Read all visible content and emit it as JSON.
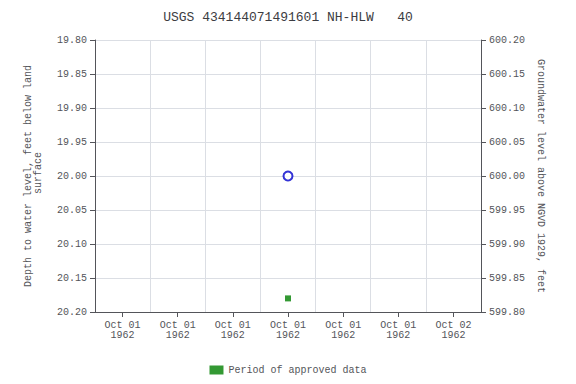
{
  "chart_data": {
    "type": "scatter",
    "title": "USGS 434144071491601 NH-HLW   40",
    "ylabel": "Depth to water level, feet below land\n surface",
    "y2label": "Groundwater level above NGVD 1929, feet",
    "categories": [
      "Oct 01\n1962",
      "Oct 01\n1962",
      "Oct 01\n1962",
      "Oct 01\n1962",
      "Oct 01\n1962",
      "Oct 01\n1962",
      "Oct 02\n1962"
    ],
    "ylim": [
      20.2,
      19.8
    ],
    "yticks": [
      {
        "value": 19.8,
        "label": "19.80"
      },
      {
        "value": 19.85,
        "label": "19.85"
      },
      {
        "value": 19.9,
        "label": "19.90"
      },
      {
        "value": 19.95,
        "label": "19.95"
      },
      {
        "value": 20.0,
        "label": "20.00"
      },
      {
        "value": 20.05,
        "label": "20.05"
      },
      {
        "value": 20.1,
        "label": "20.10"
      },
      {
        "value": 20.15,
        "label": "20.15"
      },
      {
        "value": 20.2,
        "label": "20.20"
      }
    ],
    "y2lim": [
      599.8,
      600.2
    ],
    "y2ticks": [
      {
        "value": 600.2,
        "label": "600.20"
      },
      {
        "value": 600.15,
        "label": "600.15"
      },
      {
        "value": 600.1,
        "label": "600.10"
      },
      {
        "value": 600.05,
        "label": "600.05"
      },
      {
        "value": 600.0,
        "label": "600.00"
      },
      {
        "value": 599.95,
        "label": "599.95"
      },
      {
        "value": 599.9,
        "label": "599.90"
      },
      {
        "value": 599.85,
        "label": "599.85"
      },
      {
        "value": 599.8,
        "label": "599.80"
      }
    ],
    "series": [
      {
        "marker": "open_circle",
        "color": "#0000cc",
        "values": [
          null,
          null,
          null,
          20.0,
          null,
          null,
          null
        ]
      },
      {
        "name": "Period of approved data",
        "marker": "square",
        "color": "#008000",
        "values": [
          null,
          null,
          null,
          20.18,
          null,
          null,
          null
        ]
      }
    ],
    "grid": true,
    "legend": "bottom"
  }
}
